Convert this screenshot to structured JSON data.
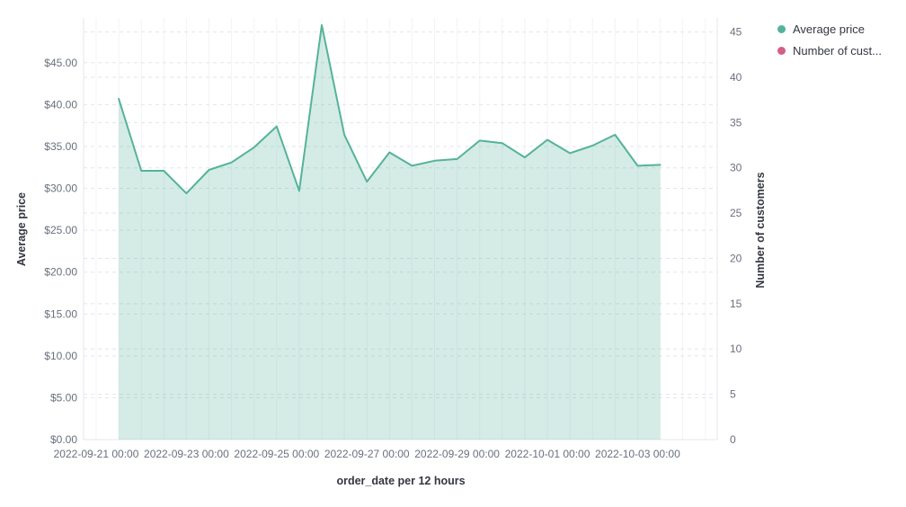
{
  "chart_data": {
    "type": "area",
    "x_axis": {
      "label": "order_date per 12 hours",
      "tick_labels": [
        "2022-09-21 00:00",
        "2022-09-23 00:00",
        "2022-09-25 00:00",
        "2022-09-27 00:00",
        "2022-09-29 00:00",
        "2022-10-01 00:00",
        "2022-10-03 00:00"
      ],
      "grid_interval": "12 hours"
    },
    "y_axis_left": {
      "label": "Average price",
      "tick_labels": [
        "$0.00",
        "$5.00",
        "$10.00",
        "$15.00",
        "$20.00",
        "$25.00",
        "$30.00",
        "$35.00",
        "$40.00",
        "$45.00"
      ],
      "tick_values": [
        0,
        5,
        10,
        15,
        20,
        25,
        30,
        35,
        40,
        45
      ],
      "range": [
        0,
        50.3
      ]
    },
    "y_axis_right": {
      "label": "Number of customers",
      "tick_labels": [
        "0",
        "5",
        "10",
        "15",
        "20",
        "25",
        "30",
        "35",
        "40",
        "45"
      ],
      "tick_values": [
        0,
        5,
        10,
        15,
        20,
        25,
        30,
        35,
        40,
        45
      ],
      "range": [
        0,
        46.5
      ]
    },
    "series": [
      {
        "name": "Average price",
        "color": "#54B399",
        "fill_opacity": 0.25,
        "x": [
          "2022-09-21 12:00",
          "2022-09-22 00:00",
          "2022-09-22 12:00",
          "2022-09-23 00:00",
          "2022-09-23 12:00",
          "2022-09-24 00:00",
          "2022-09-24 12:00",
          "2022-09-25 00:00",
          "2022-09-25 12:00",
          "2022-09-26 00:00",
          "2022-09-26 12:00",
          "2022-09-27 00:00",
          "2022-09-27 12:00",
          "2022-09-28 00:00",
          "2022-09-28 12:00",
          "2022-09-29 00:00",
          "2022-09-29 12:00",
          "2022-09-30 00:00",
          "2022-09-30 12:00",
          "2022-10-01 00:00",
          "2022-10-01 12:00",
          "2022-10-02 00:00",
          "2022-10-02 12:00",
          "2022-10-03 00:00",
          "2022-10-03 12:00"
        ],
        "values": [
          40.7,
          32.1,
          32.1,
          29.4,
          32.2,
          33.1,
          34.9,
          37.4,
          29.7,
          49.5,
          36.4,
          30.8,
          34.3,
          32.7,
          33.3,
          33.5,
          35.7,
          35.4,
          33.7,
          35.8,
          34.2,
          35.1,
          36.4,
          32.7,
          32.8
        ]
      },
      {
        "name": "Number of customers",
        "color": "#D36086",
        "values": [],
        "visible": false
      }
    ],
    "legend": {
      "position": "top-right",
      "items": [
        {
          "label": "Average price",
          "color": "#54B399"
        },
        {
          "label": "Number of cust...",
          "color": "#D36086"
        }
      ]
    },
    "grid": true
  },
  "styles": {
    "tick_color": "#69707D",
    "axis_title_color": "#343741",
    "vertical_gridline_color": "#F1F3F7",
    "horizontal_gridline_color": "#E2E5EB",
    "plot_border_color": "#E4E7EC"
  }
}
